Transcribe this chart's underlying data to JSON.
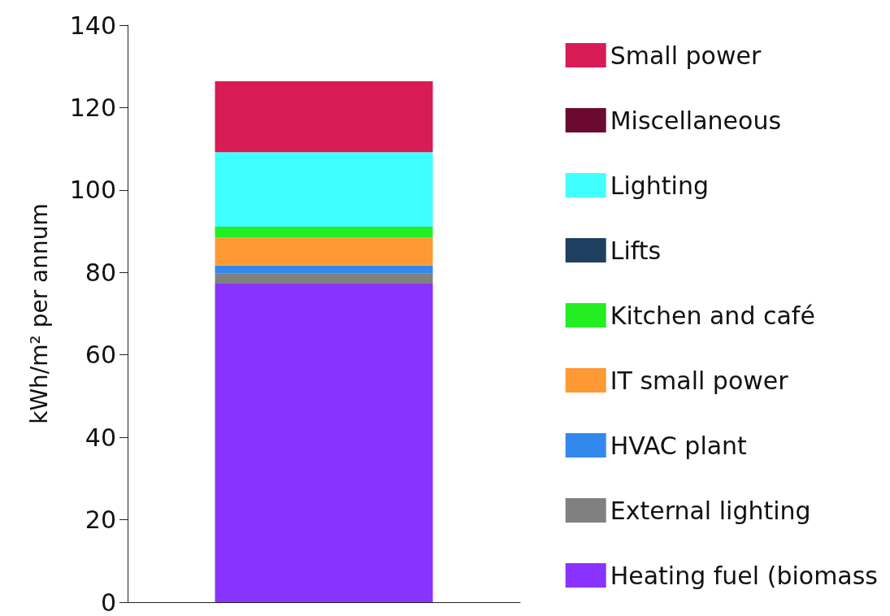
{
  "chart_data": {
    "type": "bar",
    "stacked": true,
    "ylabel": "kWh/m² per annum",
    "categories": [
      null
    ],
    "series": [
      {
        "name": "Heating fuel (biomass",
        "color": "#8833ff",
        "values": [
          77.3
        ]
      },
      {
        "name": "External lighting",
        "color": "#808080",
        "values": [
          2.4
        ]
      },
      {
        "name": "HVAC plant",
        "color": "#3388ee",
        "values": [
          2.0
        ]
      },
      {
        "name": "IT small power",
        "color": "#ff9933",
        "values": [
          6.8
        ]
      },
      {
        "name": "Kitchen and café",
        "color": "#22ee22",
        "values": [
          2.6
        ]
      },
      {
        "name": "Lifts",
        "color": "#1f3f60",
        "values": [
          0
        ]
      },
      {
        "name": "Lighting",
        "color": "#40ffff",
        "values": [
          18.1
        ]
      },
      {
        "name": "Miscellaneous",
        "color": "#6b0a30",
        "values": [
          0
        ]
      },
      {
        "name": "Small power",
        "color": "#d81b55",
        "values": [
          17.2
        ]
      }
    ],
    "ylim": [
      0,
      140
    ],
    "yticks": [
      0,
      20,
      40,
      60,
      80,
      100,
      120,
      140
    ],
    "grid": false,
    "legend": "right"
  }
}
